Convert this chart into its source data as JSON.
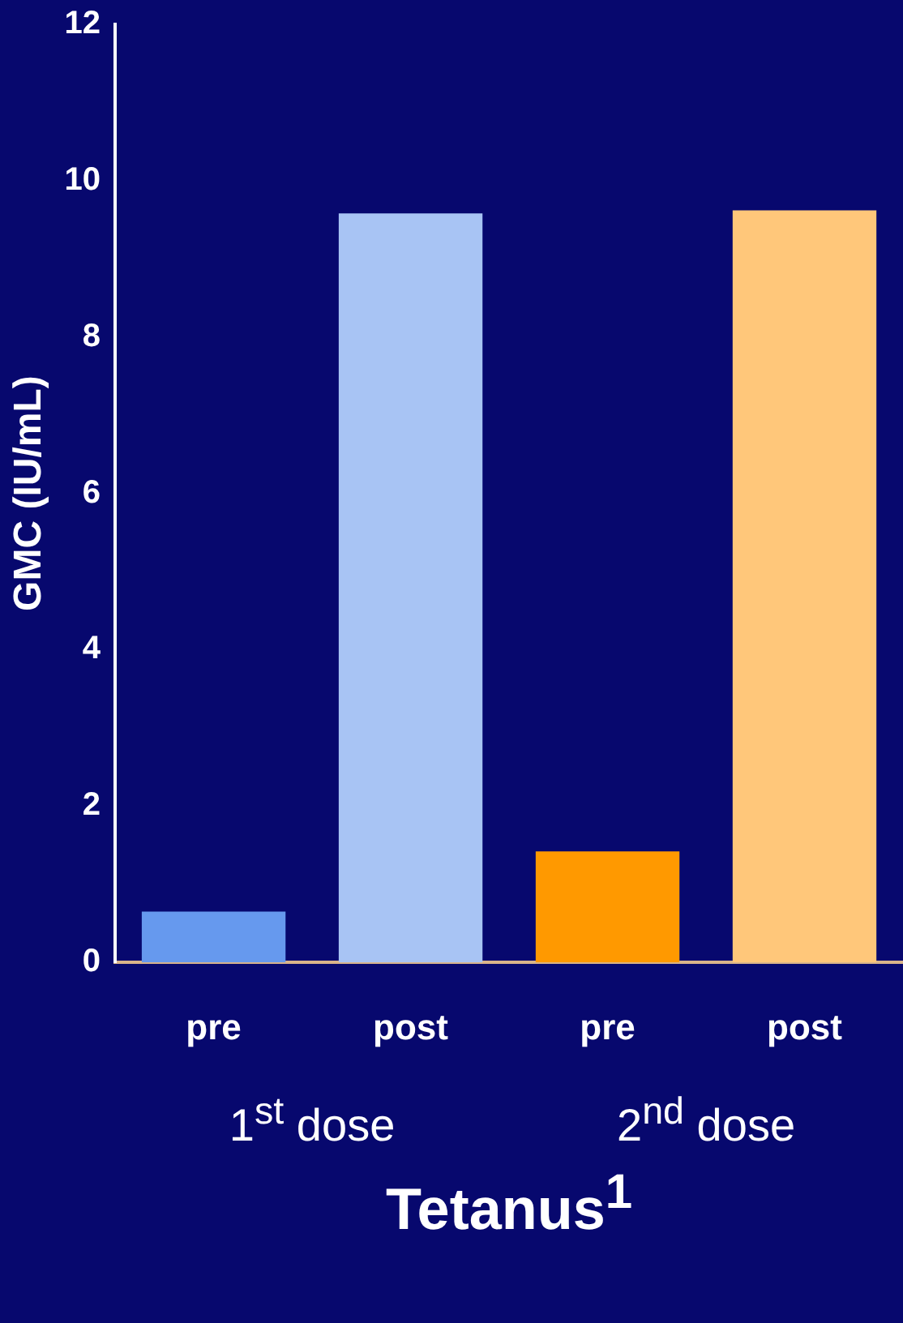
{
  "chart_data": {
    "type": "bar",
    "xlabel": "Tetanus$^{1}$",
    "ylabel": "GMC (IU/mL)",
    "categories": [
      "pre",
      "post",
      "pre",
      "post"
    ],
    "values": [
      0.65,
      9.58,
      1.42,
      9.62
    ],
    "colors": [
      "#6699ee",
      "#a8c4f4",
      "#ff9900",
      "#ffc77a"
    ],
    "ylim": [
      0,
      12
    ],
    "yticks": [
      0,
      2,
      4,
      6,
      8,
      10,
      12
    ],
    "annotations": [
      "1$^{st}$ dose",
      "2$^{nd}$ dose"
    ],
    "grid": false,
    "legend": false
  }
}
